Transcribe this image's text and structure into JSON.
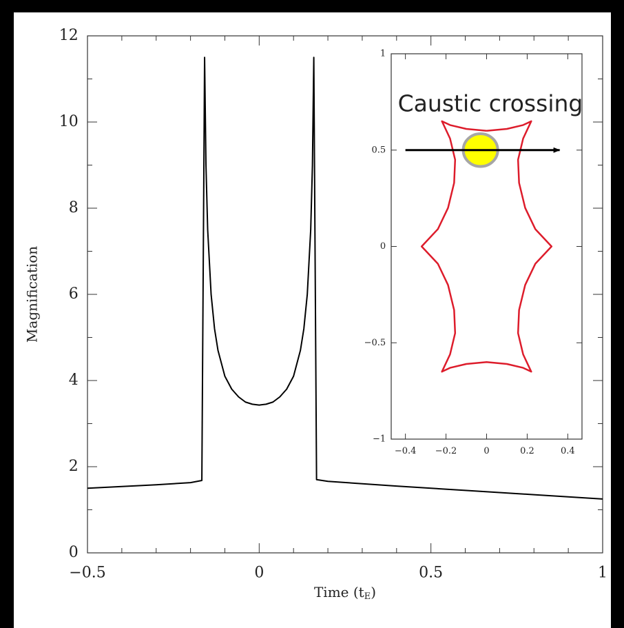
{
  "chart_data": [
    {
      "type": "line",
      "x": [
        -0.5,
        -0.4,
        -0.3,
        -0.2,
        -0.167,
        -0.159,
        -0.155,
        -0.15,
        -0.14,
        -0.13,
        -0.12,
        -0.1,
        -0.08,
        -0.06,
        -0.04,
        -0.02,
        0,
        0.02,
        0.04,
        0.06,
        0.08,
        0.1,
        0.12,
        0.13,
        0.14,
        0.15,
        0.155,
        0.159,
        0.167,
        0.2,
        0.4,
        0.6,
        0.8,
        1.0
      ],
      "values": [
        1.5,
        1.54,
        1.58,
        1.63,
        1.68,
        11.5,
        9,
        7.5,
        6.0,
        5.2,
        4.7,
        4.1,
        3.8,
        3.62,
        3.5,
        3.45,
        3.43,
        3.45,
        3.5,
        3.62,
        3.8,
        4.1,
        4.7,
        5.2,
        6.0,
        7.5,
        9,
        11.5,
        1.7,
        1.66,
        1.55,
        1.45,
        1.35,
        1.25
      ],
      "color": "#000000",
      "xlim": [
        -0.5,
        1
      ],
      "ylim": [
        0,
        12
      ],
      "xticks": [
        {
          "value": -0.5,
          "label": "−0.5"
        },
        0,
        0.5,
        1
      ],
      "yticks": [
        0,
        2,
        4,
        6,
        8,
        10,
        12
      ],
      "xminorticks": [
        -0.4,
        -0.3,
        -0.2,
        -0.1,
        0.1,
        0.2,
        0.3,
        0.4,
        0.6,
        0.7,
        0.8,
        0.9
      ],
      "yminorticks": [
        1,
        3,
        5,
        7,
        9,
        11
      ],
      "xlabel": [
        "Time (t",
        "E",
        ")"
      ],
      "ylabel": "Magnification"
    },
    {
      "type": "line",
      "x": [
        0,
        0.1,
        0.18,
        0.22,
        0.18,
        0.155,
        0.16,
        0.19,
        0.24,
        0.32,
        0.24,
        0.19,
        0.16,
        0.155,
        0.18,
        0.22,
        0.18,
        0.1,
        0,
        -0.1,
        -0.18,
        -0.22,
        -0.18,
        -0.155,
        -0.16,
        -0.19,
        -0.24,
        -0.32,
        -0.24,
        -0.19,
        -0.16,
        -0.155,
        -0.18,
        -0.22,
        -0.18,
        -0.1,
        0
      ],
      "values": [
        0.6,
        0.61,
        0.63,
        0.65,
        0.56,
        0.45,
        0.33,
        0.2,
        0.09,
        0,
        -0.09,
        -0.2,
        -0.33,
        -0.45,
        -0.56,
        -0.65,
        -0.63,
        -0.61,
        -0.6,
        -0.61,
        -0.63,
        -0.65,
        -0.56,
        -0.45,
        -0.33,
        -0.2,
        -0.09,
        0,
        0.09,
        0.2,
        0.33,
        0.45,
        0.56,
        0.65,
        0.63,
        0.61,
        0.6
      ],
      "color": "#dd1c2b",
      "xlim": [
        -0.47,
        0.47
      ],
      "ylim": [
        -1,
        1
      ],
      "xticks": [
        {
          "value": -0.4,
          "label": "−0.4"
        },
        {
          "value": -0.2,
          "label": "−0.2"
        },
        0,
        0.2,
        0.4
      ],
      "yticks": [
        {
          "value": -1,
          "label": "−1"
        },
        {
          "value": -0.5,
          "label": "−0.5"
        },
        0,
        0.5,
        1
      ],
      "annotation": "Caustic crossing",
      "source": {
        "x": -0.03,
        "y": 0.5,
        "radius": 0.085,
        "color": "#ffff00",
        "edge": "#a6a6a6"
      },
      "trajectory": {
        "x": [
          -0.4,
          0.36
        ],
        "y": [
          0.5,
          0.5
        ],
        "color": "#000000"
      }
    }
  ]
}
